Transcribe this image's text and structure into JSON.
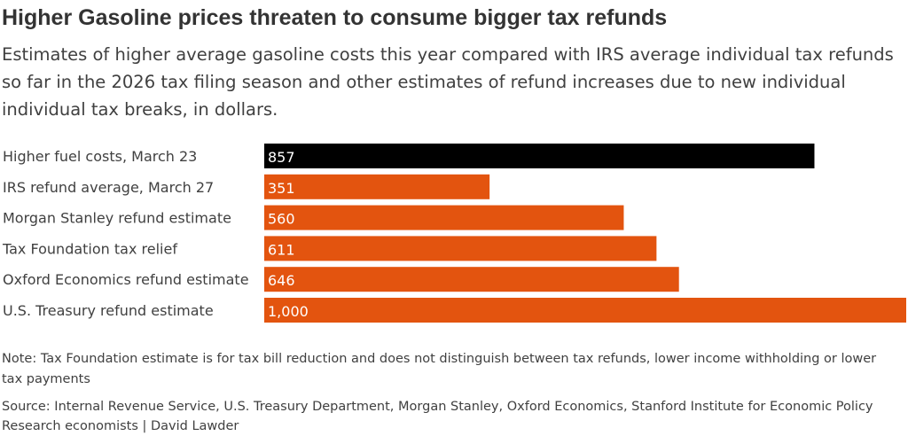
{
  "chart_data": {
    "type": "bar",
    "orientation": "horizontal",
    "title": "Higher Gasoline prices threaten to consume bigger tax refunds",
    "subtitle": "Estimates of higher average gasoline costs this year compared with IRS average individual tax refunds so far in the 2026 tax filing season and other estimates of refund increases due to new individual individual tax breaks, in dollars.",
    "categories": [
      "Higher fuel costs, March 23",
      "IRS refund average, March 27",
      "Morgan Stanley refund estimate",
      "Tax Foundation tax relief",
      "Oxford Economics refund estimate",
      "U.S. Treasury refund estimate"
    ],
    "values": [
      857,
      351,
      560,
      611,
      646,
      1000
    ],
    "value_labels": [
      "857",
      "351",
      "560",
      "611",
      "646",
      "1,000"
    ],
    "colors": [
      "#000000",
      "#e3540f",
      "#e3540f",
      "#e3540f",
      "#e3540f",
      "#e3540f"
    ],
    "xlim": [
      0,
      1000
    ],
    "grid": false,
    "note": "Note: Tax Foundation estimate is for tax bill reduction and does not distinguish between tax refunds, lower income withholding or lower tax payments",
    "source": "Source: Internal Revenue Service, U.S. Treasury Department, Morgan Stanley, Oxford Economics, Stanford Institute for Economic Policy Research economists | David Lawder"
  }
}
